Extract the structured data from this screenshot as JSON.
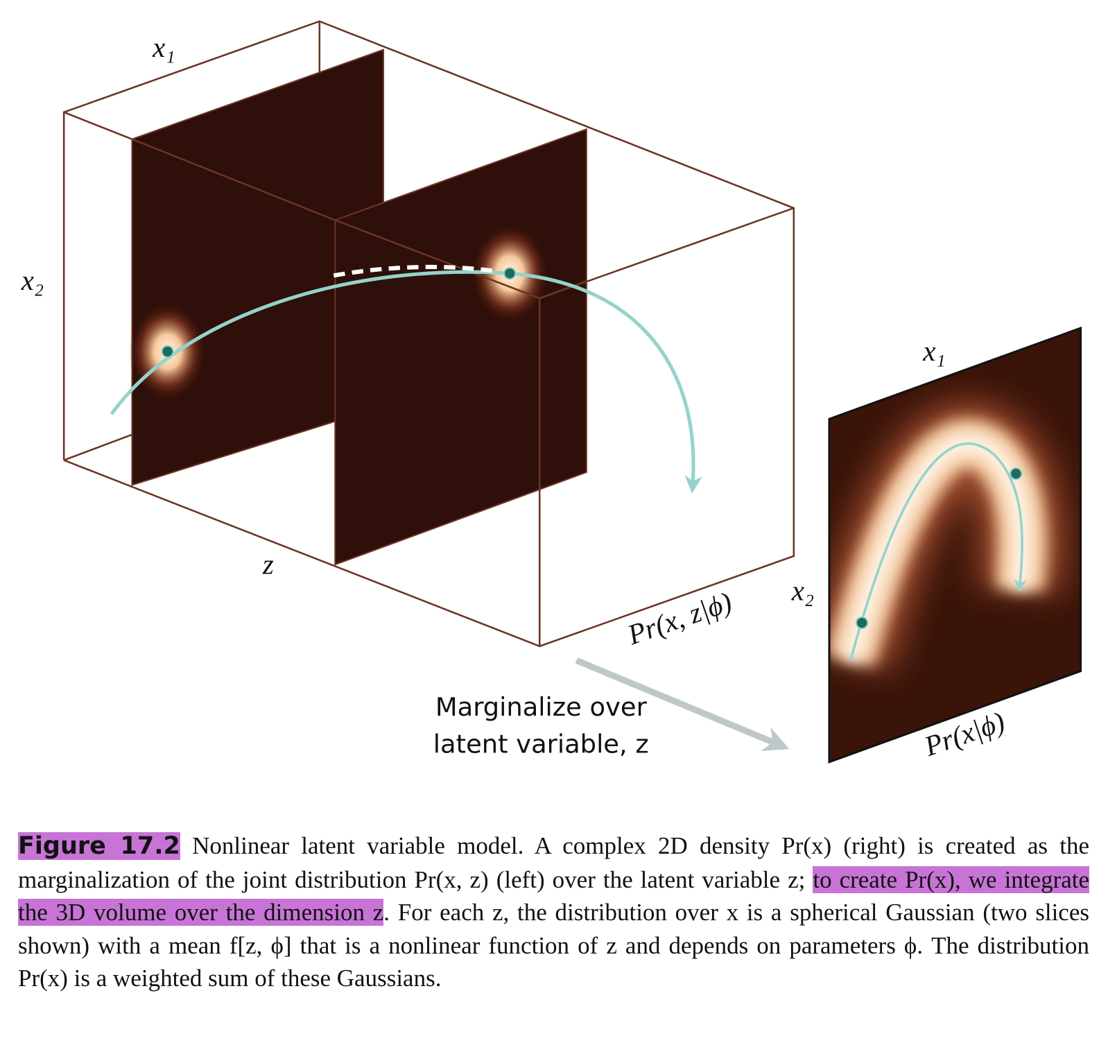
{
  "figure": {
    "box_labels": {
      "x1": "x₁",
      "x2": "x₂",
      "z": "z",
      "joint": "Pr(x, z|ϕ)"
    },
    "panel_labels": {
      "x1": "x₁",
      "x2": "x₂",
      "marginal": "Pr(x|ϕ)"
    },
    "arrow_text": [
      "Marginalize over",
      "latent variable, z"
    ]
  },
  "caption": {
    "label": "Figure 17.2",
    "text_before": "Nonlinear latent variable model. A complex 2D density Pr(x) (right) is created as the marginalization of the joint distribution Pr(x, z) (left) over the latent variable z;",
    "highlight": "to create Pr(x), we integrate the 3D volume over the dimension z",
    "text_after": ". For each z, the distribution over x is a spherical Gaussian (two slices shown) with a mean f[z, ϕ] that is a nonlinear function of z and depends on parameters ϕ. The distribution Pr(x) is a weighted sum of these Gaussians."
  }
}
